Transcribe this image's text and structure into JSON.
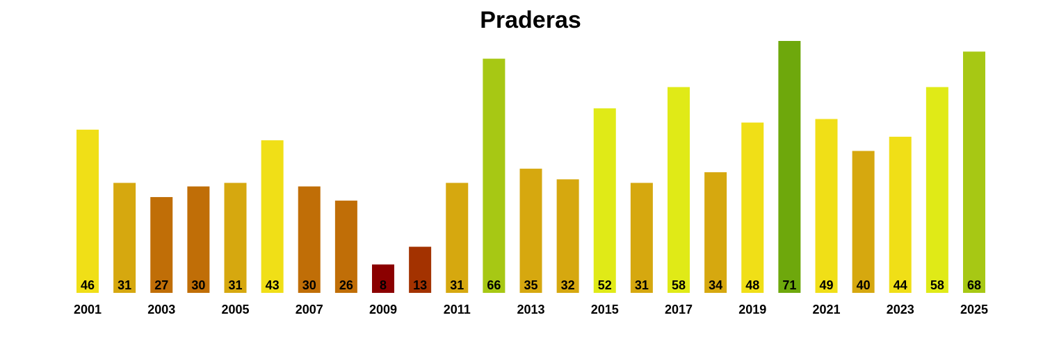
{
  "chart_data": {
    "type": "bar",
    "title": "Praderas",
    "xlabel": "",
    "ylabel": "",
    "ylim": [
      0,
      71
    ],
    "grid": false,
    "legend": "none",
    "categories": [
      "2001",
      "2002",
      "2003",
      "2004",
      "2005",
      "2006",
      "2007",
      "2008",
      "2009",
      "2010",
      "2011",
      "2012",
      "2013",
      "2014",
      "2015",
      "2016",
      "2017",
      "2018",
      "2019",
      "2020",
      "2021",
      "2022",
      "2023",
      "2024",
      "2025"
    ],
    "x_tick_labels": [
      "2001",
      "2003",
      "2005",
      "2007",
      "2009",
      "2011",
      "2013",
      "2015",
      "2017",
      "2019",
      "2021",
      "2023",
      "2025"
    ],
    "values": [
      46,
      31,
      27,
      30,
      31,
      43,
      30,
      26,
      8,
      13,
      31,
      66,
      35,
      32,
      52,
      31,
      58,
      34,
      48,
      71,
      49,
      40,
      44,
      58,
      68
    ],
    "colors": [
      "#f0df17",
      "#d6a80f",
      "#c06e07",
      "#c06e07",
      "#d6a80f",
      "#f0df17",
      "#c06e07",
      "#c06e07",
      "#8b0000",
      "#a33200",
      "#d6a80f",
      "#a7c814",
      "#d6a80f",
      "#d6a80f",
      "#e0ea17",
      "#d6a80f",
      "#e0ea17",
      "#d6a80f",
      "#f0df17",
      "#6ea80c",
      "#f0df17",
      "#d6a80f",
      "#f0df17",
      "#e0ea17",
      "#a7c814"
    ]
  }
}
